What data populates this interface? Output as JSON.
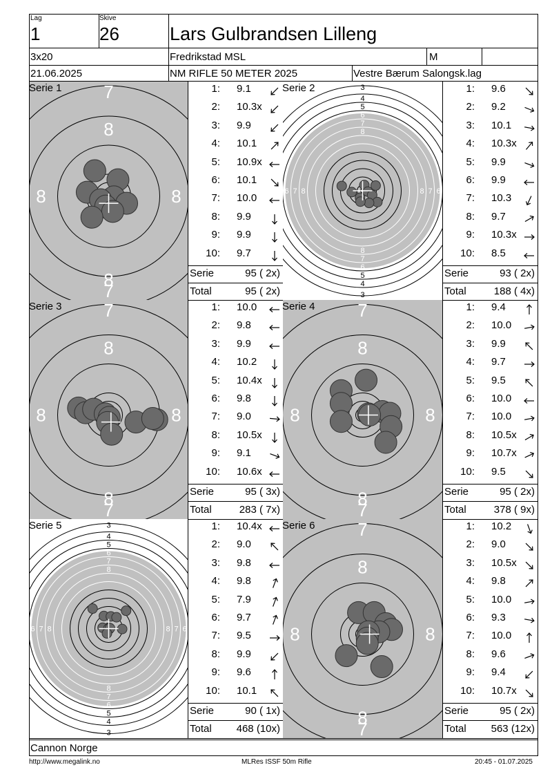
{
  "header": {
    "lag_label": "Lag",
    "lag_value": "1",
    "skive_label": "Skive",
    "skive_value": "26",
    "shooter_name": "Lars Gulbrandsen Lilleng",
    "program": "3x20",
    "club": "Fredrikstad MSL",
    "gender": "M",
    "date": "21.06.2025",
    "competition": "NM RIFLE 50 METER 2025",
    "team": "Vestre Bærum Salongsk.lag"
  },
  "labels": {
    "serie": "Serie",
    "total": "Total"
  },
  "series": [
    {
      "title": "Serie 1",
      "view": "zoom",
      "shots": [
        {
          "n": "1:",
          "v": "9.1",
          "a": 225
        },
        {
          "n": "2:",
          "v": "10.3x",
          "a": 225
        },
        {
          "n": "3:",
          "v": "9.9",
          "a": 225
        },
        {
          "n": "4:",
          "v": "10.1",
          "a": 45
        },
        {
          "n": "5:",
          "v": "10.9x",
          "a": 270
        },
        {
          "n": "6:",
          "v": "10.1",
          "a": 135
        },
        {
          "n": "7:",
          "v": "10.0",
          "a": 270
        },
        {
          "n": "8:",
          "v": "9.9",
          "a": 180
        },
        {
          "n": "9:",
          "v": "9.9",
          "a": 180
        },
        {
          "n": "10:",
          "v": "9.7",
          "a": 180
        }
      ],
      "serie_score": "95 ( 2x)",
      "total_score": "95 ( 2x)",
      "impacts": [
        [
          0.8,
          -1.42
        ],
        [
          -1.85,
          -0.35
        ],
        [
          -1.2,
          -2.2
        ],
        [
          0.15,
          0.25
        ],
        [
          0.45,
          0.05
        ],
        [
          -0.7,
          0.3
        ],
        [
          -0.25,
          0.85
        ],
        [
          1.55,
          0.6
        ],
        [
          0.35,
          1.3
        ],
        [
          -1.45,
          1.8
        ]
      ],
      "cross": [
        0.0,
        0.6
      ]
    },
    {
      "title": "Serie 2",
      "view": "full",
      "shots": [
        {
          "n": "1:",
          "v": "9.6",
          "a": 135
        },
        {
          "n": "2:",
          "v": "9.2",
          "a": 112
        },
        {
          "n": "3:",
          "v": "10.1",
          "a": 100
        },
        {
          "n": "4:",
          "v": "10.3x",
          "a": 40
        },
        {
          "n": "5:",
          "v": "9.9",
          "a": 110
        },
        {
          "n": "6:",
          "v": "9.9",
          "a": 270
        },
        {
          "n": "7:",
          "v": "10.3",
          "a": 205
        },
        {
          "n": "8:",
          "v": "9.7",
          "a": 60
        },
        {
          "n": "9:",
          "v": "10.3x",
          "a": 90
        },
        {
          "n": "10:",
          "v": "8.5",
          "a": 270
        }
      ],
      "serie_score": "93 ( 2x)",
      "total_score": "188 ( 4x)",
      "impacts": [
        [
          -2.4,
          -0.55
        ],
        [
          -1.25,
          0.15
        ],
        [
          0.2,
          -0.65
        ],
        [
          0.6,
          0.1
        ],
        [
          1.1,
          0.5
        ],
        [
          1.5,
          -0.6
        ],
        [
          1.7,
          1.3
        ],
        [
          0.75,
          1.4
        ],
        [
          -0.3,
          0.8
        ],
        [
          -0.25,
          1.25
        ]
      ],
      "cross": [
        0.0,
        0.0
      ]
    },
    {
      "title": "Serie 3",
      "view": "zoom",
      "shots": [
        {
          "n": "1:",
          "v": "10.0",
          "a": 270
        },
        {
          "n": "2:",
          "v": "9.8",
          "a": 270
        },
        {
          "n": "3:",
          "v": "9.9",
          "a": 270
        },
        {
          "n": "4:",
          "v": "10.2",
          "a": 180
        },
        {
          "n": "5:",
          "v": "10.4x",
          "a": 180
        },
        {
          "n": "6:",
          "v": "9.8",
          "a": 180
        },
        {
          "n": "7:",
          "v": "9.0",
          "a": 95
        },
        {
          "n": "8:",
          "v": "10.5x",
          "a": 180
        },
        {
          "n": "9:",
          "v": "9.1",
          "a": 110
        },
        {
          "n": "10:",
          "v": "10.6x",
          "a": 270
        }
      ],
      "serie_score": "95 ( 3x)",
      "total_score": "283 ( 7x)",
      "impacts": [
        [
          -2.6,
          -0.6
        ],
        [
          -2.0,
          -0.2
        ],
        [
          -1.3,
          -0.5
        ],
        [
          -0.3,
          -0.1
        ],
        [
          0.05,
          0.2
        ],
        [
          -0.1,
          0.65
        ],
        [
          2.35,
          0.6
        ],
        [
          4.15,
          0.4
        ],
        [
          3.8,
          0.3
        ],
        [
          0.25,
          1.65
        ]
      ],
      "cross": [
        0.2,
        0.6
      ]
    },
    {
      "title": "Serie 4",
      "view": "zoom",
      "shots": [
        {
          "n": "1:",
          "v": "9.4",
          "a": 0
        },
        {
          "n": "2:",
          "v": "10.0",
          "a": 80
        },
        {
          "n": "3:",
          "v": "9.9",
          "a": 315
        },
        {
          "n": "4:",
          "v": "9.7",
          "a": 90
        },
        {
          "n": "5:",
          "v": "9.5",
          "a": 315
        },
        {
          "n": "6:",
          "v": "10.0",
          "a": 270
        },
        {
          "n": "7:",
          "v": "10.0",
          "a": 80
        },
        {
          "n": "8:",
          "v": "10.5x",
          "a": 60
        },
        {
          "n": "9:",
          "v": "10.7x",
          "a": 65
        },
        {
          "n": "10:",
          "v": "9.5",
          "a": 135
        }
      ],
      "serie_score": "95 ( 2x)",
      "total_score": "378 ( 9x)",
      "impacts": [
        [
          0.3,
          -3.0
        ],
        [
          -1.85,
          -2.1
        ],
        [
          -1.85,
          -1.0
        ],
        [
          -1.85,
          0.55
        ],
        [
          0.5,
          -0.1
        ],
        [
          1.7,
          -0.3
        ],
        [
          2.35,
          -0.15
        ],
        [
          2.45,
          1.0
        ],
        [
          2.0,
          2.35
        ],
        [
          0.6,
          0.0
        ]
      ],
      "cross": [
        0.5,
        0.0
      ]
    },
    {
      "title": "Serie 5",
      "view": "full",
      "shots": [
        {
          "n": "1:",
          "v": "10.4x",
          "a": 270
        },
        {
          "n": "2:",
          "v": "9.0",
          "a": 315
        },
        {
          "n": "3:",
          "v": "9.8",
          "a": 270
        },
        {
          "n": "4:",
          "v": "9.8",
          "a": 20
        },
        {
          "n": "5:",
          "v": "7.9",
          "a": 20
        },
        {
          "n": "6:",
          "v": "9.7",
          "a": 20
        },
        {
          "n": "7:",
          "v": "9.5",
          "a": 90
        },
        {
          "n": "8:",
          "v": "9.9",
          "a": 225
        },
        {
          "n": "9:",
          "v": "9.6",
          "a": 0
        },
        {
          "n": "10:",
          "v": "10.1",
          "a": 315
        }
      ],
      "serie_score": "90 ( 1x)",
      "total_score": "468 (10x)",
      "impacts": [
        [
          -0.55,
          -1.45
        ],
        [
          0.25,
          -1.4
        ],
        [
          0.9,
          -1.3
        ],
        [
          -1.85,
          -2.3
        ],
        [
          -0.7,
          -0.1
        ],
        [
          -0.05,
          0.0
        ],
        [
          0.15,
          -0.05
        ],
        [
          1.55,
          0.05
        ],
        [
          -0.2,
          0.55
        ],
        [
          2.0,
          -2.05
        ]
      ],
      "cross": [
        0.0,
        0.0
      ]
    },
    {
      "title": "Serie 6",
      "view": "zoom",
      "shots": [
        {
          "n": "1:",
          "v": "10.2",
          "a": 160
        },
        {
          "n": "2:",
          "v": "9.0",
          "a": 135
        },
        {
          "n": "3:",
          "v": "10.5x",
          "a": 135
        },
        {
          "n": "4:",
          "v": "9.8",
          "a": 45
        },
        {
          "n": "5:",
          "v": "10.0",
          "a": 80
        },
        {
          "n": "6:",
          "v": "9.3",
          "a": 100
        },
        {
          "n": "7:",
          "v": "10.0",
          "a": 0
        },
        {
          "n": "8:",
          "v": "9.6",
          "a": 70
        },
        {
          "n": "9:",
          "v": "9.4",
          "a": 225
        },
        {
          "n": "10:",
          "v": "10.7x",
          "a": 135
        }
      ],
      "serie_score": "95 ( 2x)",
      "total_score": "563 (12x)",
      "impacts": [
        [
          -0.35,
          -1.85
        ],
        [
          1.0,
          -1.85
        ],
        [
          2.0,
          -0.9
        ],
        [
          2.5,
          -0.4
        ],
        [
          1.4,
          -0.2
        ],
        [
          0.5,
          -0.2
        ],
        [
          0.4,
          0.35
        ],
        [
          0.4,
          0.8
        ],
        [
          -1.4,
          1.85
        ],
        [
          1.65,
          2.8
        ]
      ],
      "cross": [
        0.6,
        0.0
      ]
    }
  ],
  "target_rings": {
    "zoom_labels": [
      "7",
      "8"
    ],
    "full_labels": [
      "3",
      "4",
      "5",
      "6",
      "7",
      "8"
    ]
  },
  "footer": {
    "sponsor": "Cannon Norge",
    "url": "http://www.megalink.no",
    "software": "MLRes ISSF 50m Rifle",
    "timestamp": "20:45 - 01.07.2025"
  },
  "colors": {
    "target_gray": "#c0c0c0",
    "impact": "#6a6a6a",
    "line": "#000000"
  }
}
